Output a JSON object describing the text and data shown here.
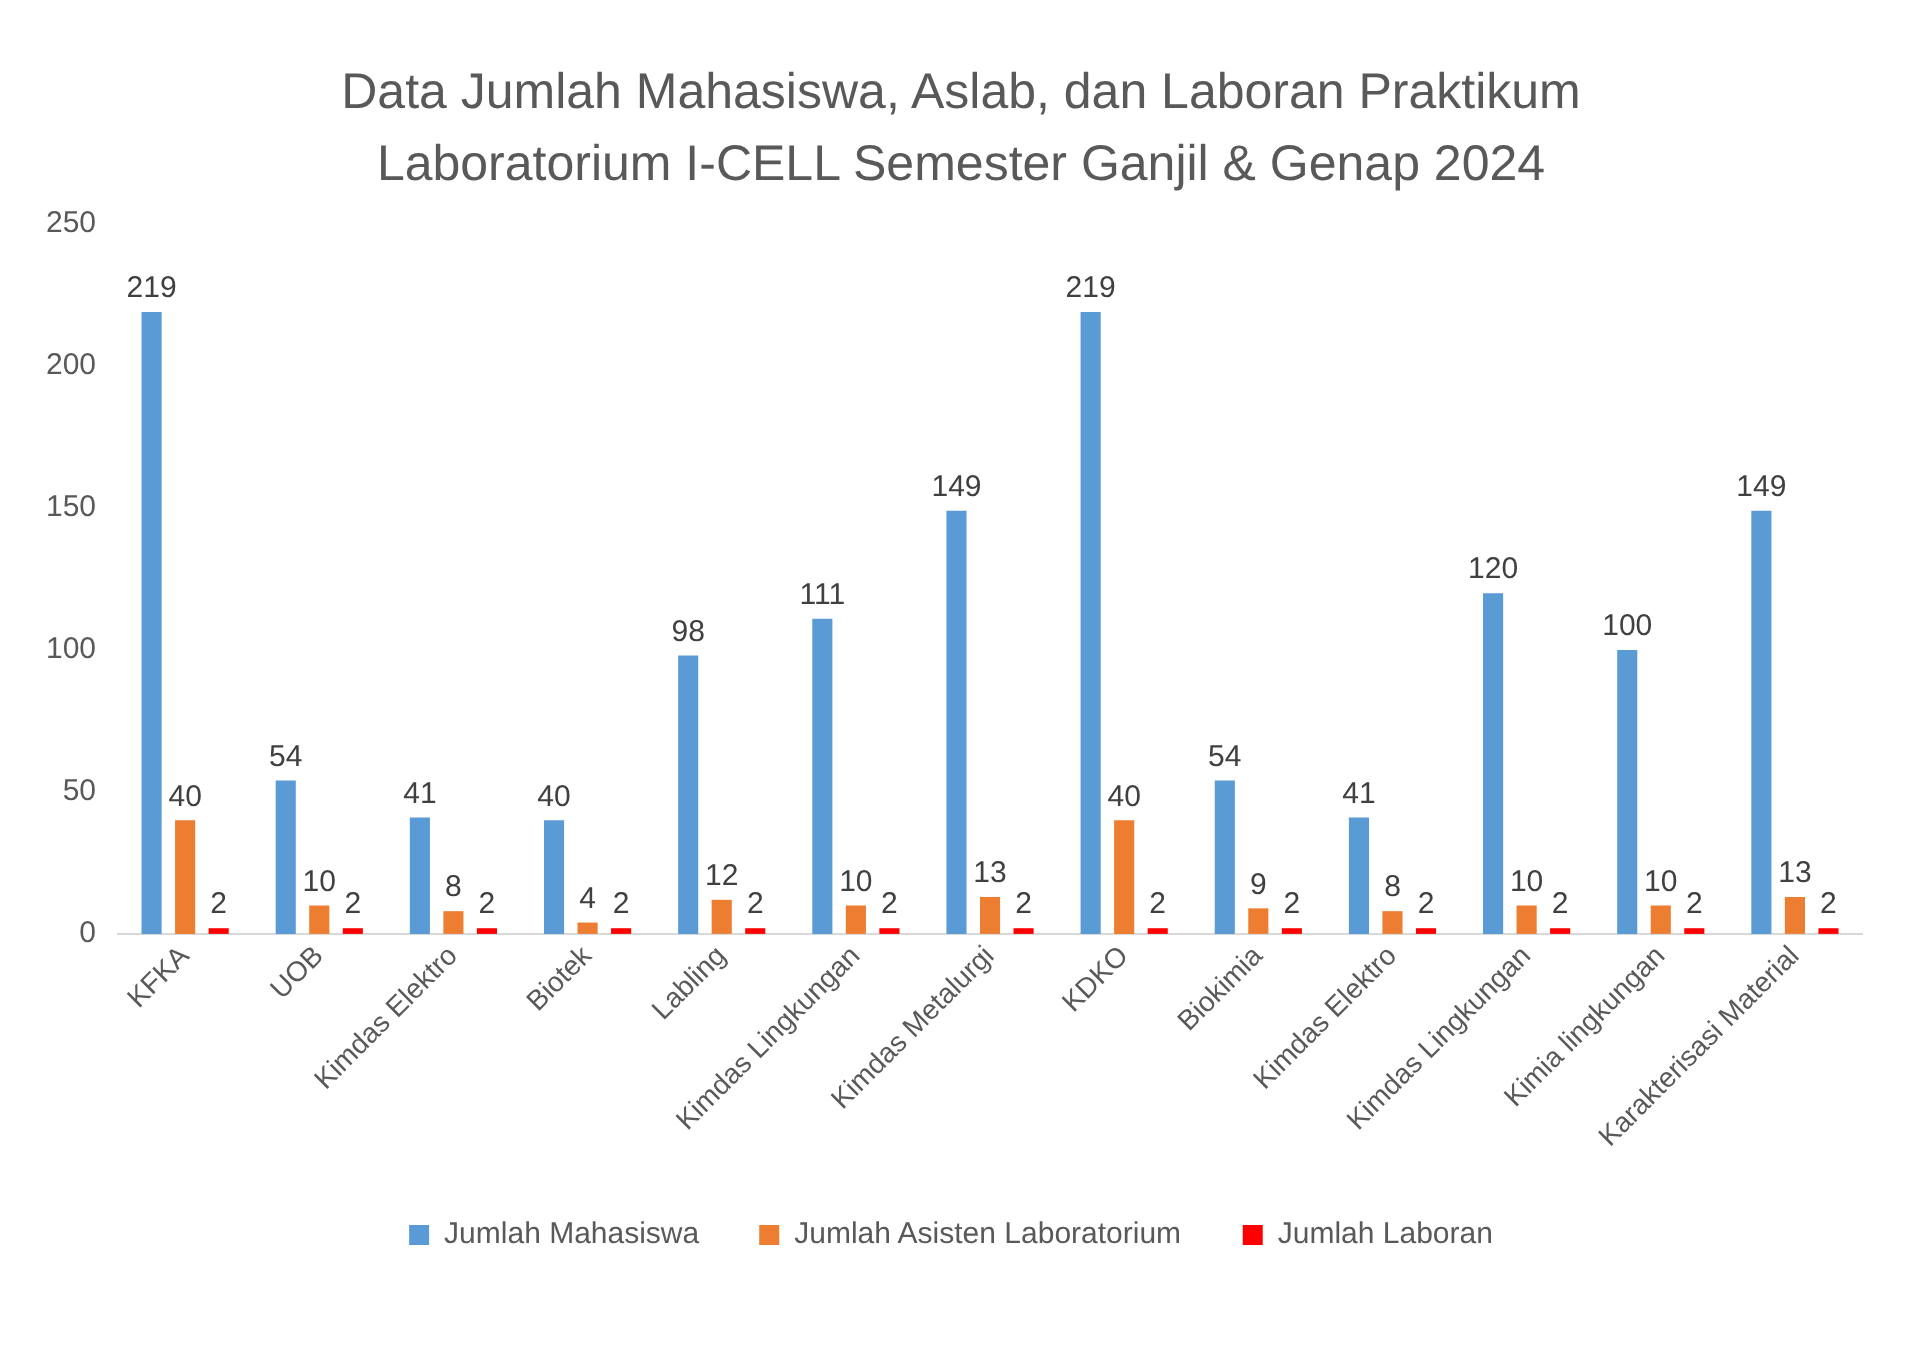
{
  "chart_data": {
    "type": "bar",
    "title": "Data Jumlah Mahasiswa, Aslab, dan Laboran Praktikum Laboratorium I-CELL Semester Ganjil & Genap 2024",
    "categories": [
      "KFKA",
      "UOB",
      "Kimdas Elektro",
      "Biotek",
      "Labling",
      "Kimdas Lingkungan",
      "Kimdas Metalurgi",
      "KDKO",
      "Biokimia",
      "Kimdas Elektro",
      "Kimdas Lingkungan",
      "Kimia lingkungan",
      "Karakterisasi Material"
    ],
    "series": [
      {
        "name": "Jumlah Mahasiswa",
        "color": "#5b9bd5",
        "values": [
          219,
          54,
          41,
          40,
          98,
          111,
          149,
          219,
          54,
          41,
          120,
          100,
          149
        ]
      },
      {
        "name": "Jumlah Asisten Laboratorium",
        "color": "#ed7d31",
        "values": [
          40,
          10,
          8,
          4,
          12,
          10,
          13,
          40,
          9,
          8,
          10,
          10,
          13
        ]
      },
      {
        "name": "Jumlah Laboran",
        "color": "#ff0000",
        "values": [
          2,
          2,
          2,
          2,
          2,
          2,
          2,
          2,
          2,
          2,
          2,
          2,
          2
        ]
      }
    ],
    "ylim": [
      0,
      250
    ],
    "yticks": [
      0,
      50,
      100,
      150,
      200,
      250
    ],
    "grid": false,
    "legend": "bottom",
    "data_labels": true
  }
}
